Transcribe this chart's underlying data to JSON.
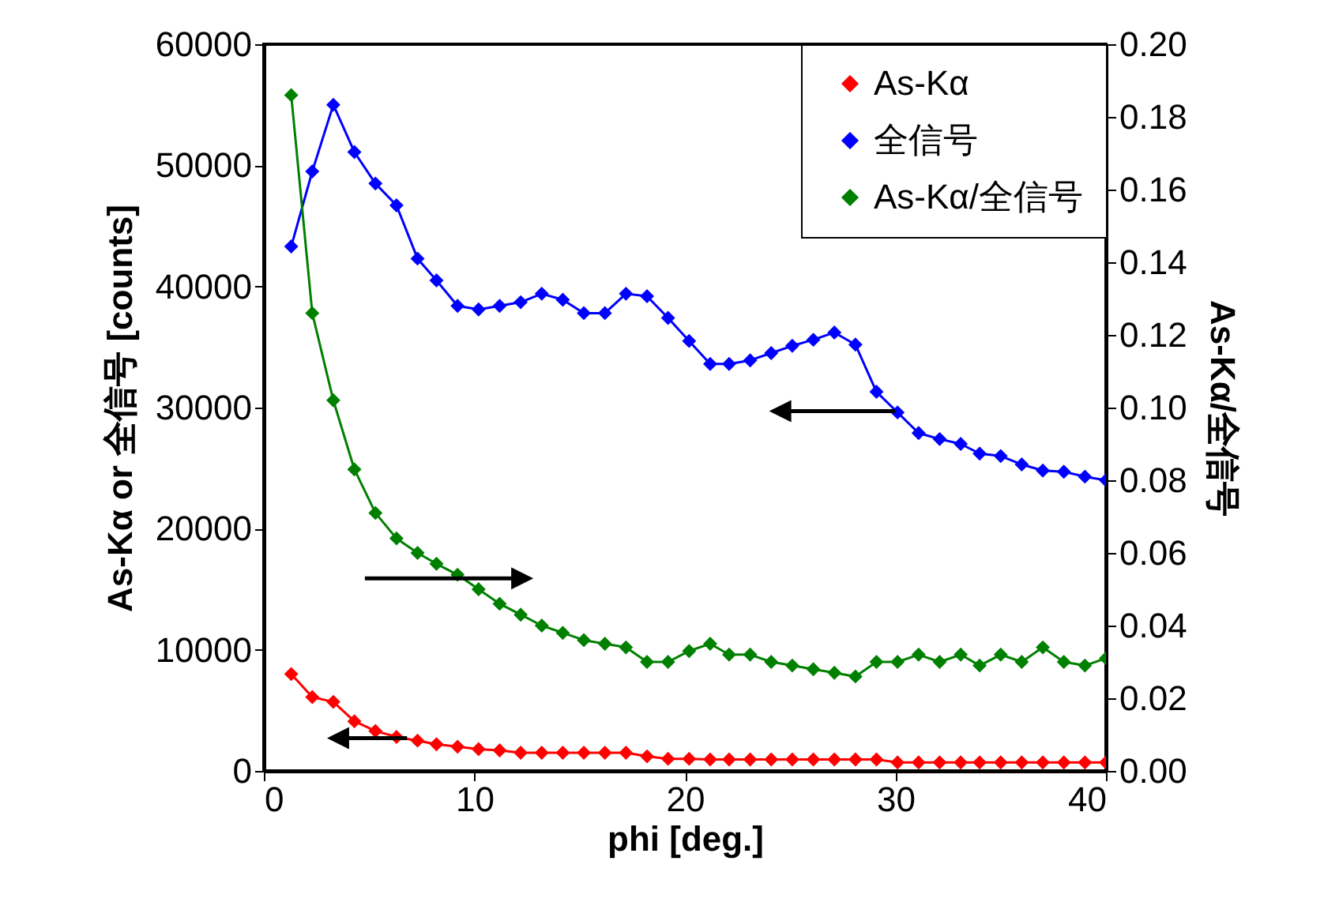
{
  "chart_data": {
    "type": "line",
    "xlabel": "phi [deg.]",
    "ylabel": "As-Kα or 全信号 [counts]",
    "y2label": "As-Kα/全信号",
    "x": [
      1.3,
      2.3,
      3.3,
      4.3,
      5.3,
      6.3,
      7.3,
      8.2,
      9.2,
      10.2,
      11.2,
      12.2,
      13.2,
      14.2,
      15.2,
      16.2,
      17.2,
      18.2,
      19.2,
      20.2,
      21.2,
      22.1,
      23.1,
      24.1,
      25.1,
      26.1,
      27.1,
      28.1,
      29.1,
      30.1,
      31.1,
      32.1,
      33.1,
      34.0,
      35.0,
      36.0,
      37.0,
      38.0,
      39.0,
      40.0
    ],
    "series": [
      {
        "name": "As-Kα",
        "color": "#ff0000",
        "values": [
          8000,
          6100,
          5700,
          4100,
          3300,
          2800,
          2500,
          2200,
          2000,
          1800,
          1700,
          1500,
          1500,
          1500,
          1500,
          1500,
          1500,
          1200,
          1000,
          1000,
          950,
          950,
          950,
          950,
          950,
          950,
          950,
          950,
          950,
          700,
          700,
          700,
          700,
          700,
          700,
          700,
          700,
          700,
          700,
          700
        ]
      },
      {
        "name": "全信号",
        "color": "#0000ff",
        "values": [
          43300,
          49500,
          55000,
          51100,
          48500,
          46700,
          42300,
          40500,
          38400,
          38100,
          38400,
          38700,
          39400,
          38900,
          37800,
          37800,
          39400,
          39200,
          37400,
          35500,
          33600,
          33600,
          33900,
          34500,
          35100,
          35600,
          36200,
          35200,
          31300,
          29600,
          27900,
          27400,
          27000,
          26200,
          26000,
          25300,
          24800,
          24700,
          24300,
          24000
        ]
      },
      {
        "name": "As-Kα/全信号",
        "color": "#008000",
        "axis": "y2",
        "values": [
          0.186,
          0.126,
          0.102,
          0.083,
          0.071,
          0.064,
          0.06,
          0.057,
          0.054,
          0.05,
          0.046,
          0.043,
          0.04,
          0.038,
          0.036,
          0.035,
          0.034,
          0.03,
          0.03,
          0.033,
          0.035,
          0.032,
          0.032,
          0.03,
          0.029,
          0.028,
          0.027,
          0.026,
          0.03,
          0.03,
          0.032,
          0.03,
          0.032,
          0.029,
          0.032,
          0.03,
          0.034,
          0.03,
          0.029,
          0.031
        ]
      }
    ],
    "xlim": [
      0,
      40
    ],
    "xticks": [
      0,
      10,
      20,
      30,
      40
    ],
    "ylim": [
      0,
      60000
    ],
    "yticks": [
      0,
      10000,
      20000,
      30000,
      40000,
      50000,
      60000
    ],
    "y2lim": [
      0,
      0.2
    ],
    "y2ticks": [
      {
        "value": 0,
        "label": "0.00"
      },
      {
        "value": 0.02,
        "label": "0.02"
      },
      {
        "value": 0.04,
        "label": "0.04"
      },
      {
        "value": 0.06,
        "label": "0.06"
      },
      {
        "value": 0.08,
        "label": "0.08"
      },
      {
        "value": 0.1,
        "label": "0.10"
      },
      {
        "value": 0.12,
        "label": "0.12"
      },
      {
        "value": 0.14,
        "label": "0.14"
      },
      {
        "value": 0.16,
        "label": "0.16"
      },
      {
        "value": 0.18,
        "label": "0.18"
      },
      {
        "value": 0.2,
        "label": "0.20"
      }
    ],
    "grid": false,
    "legend": "top right",
    "marker": "diamond"
  }
}
